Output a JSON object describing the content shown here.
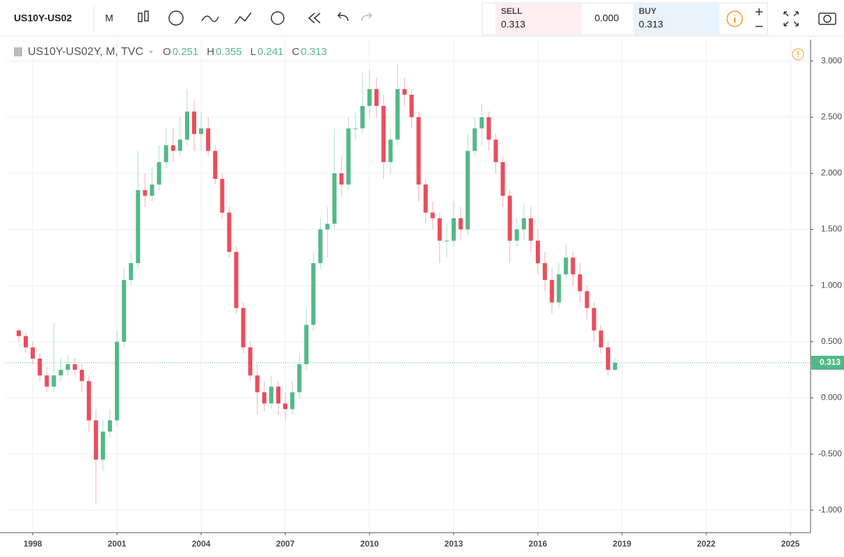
{
  "toolbar": {
    "symbol": "US10Y-US02",
    "interval": "M",
    "sell_label": "SELL",
    "sell_price": "0.313",
    "spread": "0.000",
    "buy_label": "BUY",
    "buy_price": "0.313"
  },
  "chart_data": {
    "type": "candlestick",
    "title": "US10Y-US02Y, M, TVC",
    "ohlc_labels": [
      "O",
      "H",
      "L",
      "C"
    ],
    "up_color": "#53b987",
    "down_color": "#eb4d5c",
    "grid": true,
    "x": [
      1997.5,
      1997.75,
      1998,
      1998.25,
      1998.5,
      1998.75,
      1999,
      1999.25,
      1999.5,
      1999.75,
      2000,
      2000.25,
      2000.5,
      2000.75,
      2001,
      2001.25,
      2001.5,
      2001.75,
      2002,
      2002.25,
      2002.5,
      2002.75,
      2003,
      2003.25,
      2003.5,
      2003.75,
      2004,
      2004.25,
      2004.5,
      2004.75,
      2005,
      2005.25,
      2005.5,
      2005.75,
      2006,
      2006.25,
      2006.5,
      2006.75,
      2007,
      2007.25,
      2007.5,
      2007.75,
      2008,
      2008.25,
      2008.5,
      2008.75,
      2009,
      2009.25,
      2009.5,
      2009.75,
      2010,
      2010.25,
      2010.5,
      2010.75,
      2011,
      2011.25,
      2011.5,
      2011.75,
      2012,
      2012.25,
      2012.5,
      2012.75,
      2013,
      2013.25,
      2013.5,
      2013.75,
      2014,
      2014.25,
      2014.5,
      2014.75,
      2015,
      2015.25,
      2015.5,
      2015.75,
      2016,
      2016.25,
      2016.5,
      2016.75,
      2017,
      2017.25,
      2017.5,
      2017.75,
      2018,
      2018.25,
      2018.5,
      2018.75
    ],
    "open": [
      0.6,
      0.55,
      0.45,
      0.35,
      0.2,
      0.1,
      0.2,
      0.25,
      0.3,
      0.25,
      0.15,
      -0.2,
      -0.55,
      -0.3,
      -0.2,
      0.5,
      1.05,
      1.2,
      1.85,
      1.8,
      1.9,
      2.1,
      2.25,
      2.2,
      2.3,
      2.55,
      2.35,
      2.4,
      2.2,
      1.95,
      1.65,
      1.3,
      0.8,
      0.45,
      0.2,
      0.05,
      -0.05,
      0.1,
      -0.05,
      -0.1,
      0.05,
      0.3,
      0.65,
      1.2,
      1.5,
      1.55,
      2.0,
      1.9,
      2.4,
      2.4,
      2.6,
      2.75,
      2.6,
      2.1,
      2.3,
      2.75,
      2.7,
      2.5,
      1.9,
      1.65,
      1.6,
      1.4,
      1.4,
      1.6,
      1.5,
      2.2,
      2.4,
      2.5,
      2.3,
      2.1,
      1.8,
      1.4,
      1.5,
      1.6,
      1.4,
      1.2,
      1.05,
      0.85,
      1.1,
      1.25,
      1.1,
      0.95,
      0.8,
      0.6,
      0.45,
      0.251
    ],
    "high": [
      0.62,
      0.58,
      0.5,
      0.4,
      0.28,
      0.67,
      0.35,
      0.38,
      0.35,
      0.3,
      0.2,
      -0.1,
      -0.2,
      -0.1,
      0.6,
      1.15,
      1.3,
      2.2,
      2.0,
      2.05,
      2.25,
      2.4,
      2.4,
      2.5,
      2.75,
      2.65,
      2.55,
      2.5,
      2.25,
      2.0,
      1.7,
      1.35,
      0.85,
      0.5,
      0.3,
      0.15,
      0.2,
      0.15,
      0.05,
      0.15,
      0.4,
      0.8,
      1.3,
      1.6,
      1.7,
      2.4,
      2.15,
      2.5,
      2.55,
      2.9,
      2.92,
      2.85,
      2.7,
      2.4,
      2.97,
      2.85,
      2.75,
      2.55,
      1.95,
      1.75,
      1.65,
      1.55,
      1.75,
      1.7,
      2.35,
      2.5,
      2.62,
      2.55,
      2.35,
      2.15,
      1.85,
      1.6,
      1.72,
      1.7,
      1.5,
      1.3,
      1.15,
      1.2,
      1.37,
      1.3,
      1.2,
      1.0,
      0.85,
      0.65,
      0.5,
      0.355
    ],
    "low": [
      0.5,
      0.4,
      0.3,
      0.15,
      0.05,
      0.05,
      0.15,
      0.2,
      0.2,
      0.05,
      -0.3,
      -0.95,
      -0.65,
      -0.35,
      -0.25,
      0.45,
      1.0,
      1.15,
      1.7,
      1.75,
      1.85,
      2.05,
      2.1,
      2.15,
      2.25,
      2.2,
      2.2,
      2.15,
      1.9,
      1.6,
      1.25,
      0.75,
      0.4,
      0.15,
      -0.15,
      -0.12,
      -0.1,
      -0.15,
      -0.2,
      -0.15,
      0.0,
      0.25,
      0.6,
      1.15,
      1.25,
      1.5,
      1.8,
      1.85,
      2.3,
      2.35,
      2.5,
      2.5,
      1.95,
      2.0,
      2.25,
      2.6,
      2.4,
      1.75,
      1.55,
      1.5,
      1.2,
      1.25,
      1.35,
      1.4,
      1.45,
      2.15,
      2.25,
      2.2,
      2.0,
      1.7,
      1.2,
      1.35,
      1.4,
      1.3,
      1.1,
      0.95,
      0.75,
      0.8,
      1.05,
      1.0,
      0.85,
      0.7,
      0.5,
      0.4,
      0.2,
      0.241
    ],
    "close": [
      0.55,
      0.45,
      0.35,
      0.2,
      0.1,
      0.2,
      0.25,
      0.3,
      0.25,
      0.15,
      -0.2,
      -0.55,
      -0.3,
      -0.2,
      0.5,
      1.05,
      1.2,
      1.85,
      1.8,
      1.9,
      2.1,
      2.25,
      2.2,
      2.3,
      2.55,
      2.35,
      2.4,
      2.2,
      1.95,
      1.65,
      1.3,
      0.8,
      0.45,
      0.2,
      0.05,
      -0.05,
      0.1,
      -0.05,
      -0.1,
      0.05,
      0.3,
      0.65,
      1.2,
      1.5,
      1.55,
      2.0,
      1.9,
      2.4,
      2.4,
      2.6,
      2.75,
      2.6,
      2.1,
      2.3,
      2.75,
      2.7,
      2.5,
      1.9,
      1.65,
      1.6,
      1.4,
      1.4,
      1.6,
      1.5,
      2.2,
      2.4,
      2.5,
      2.3,
      2.1,
      1.8,
      1.4,
      1.5,
      1.6,
      1.4,
      1.2,
      1.05,
      0.85,
      1.1,
      1.25,
      1.1,
      0.95,
      0.8,
      0.6,
      0.45,
      0.25,
      0.313
    ],
    "xlim": [
      1997.03,
      2025.72
    ],
    "xticks": [
      1998,
      2001,
      2004,
      2007,
      2010,
      2013,
      2016,
      2019,
      2022,
      2025
    ],
    "ylim": [
      -1.2,
      3.19
    ],
    "yticks": [
      {
        "value": -1,
        "label": "-1.000"
      },
      {
        "value": -0.5,
        "label": "-0.500"
      },
      {
        "value": 0,
        "label": "0.000"
      },
      {
        "value": 0.5,
        "label": "0.500"
      },
      {
        "value": 1,
        "label": "1.000"
      },
      {
        "value": 1.5,
        "label": "1.500"
      },
      {
        "value": 2,
        "label": "2.000"
      },
      {
        "value": 2.5,
        "label": "2.500"
      },
      {
        "value": 3,
        "label": "3.000"
      }
    ]
  }
}
